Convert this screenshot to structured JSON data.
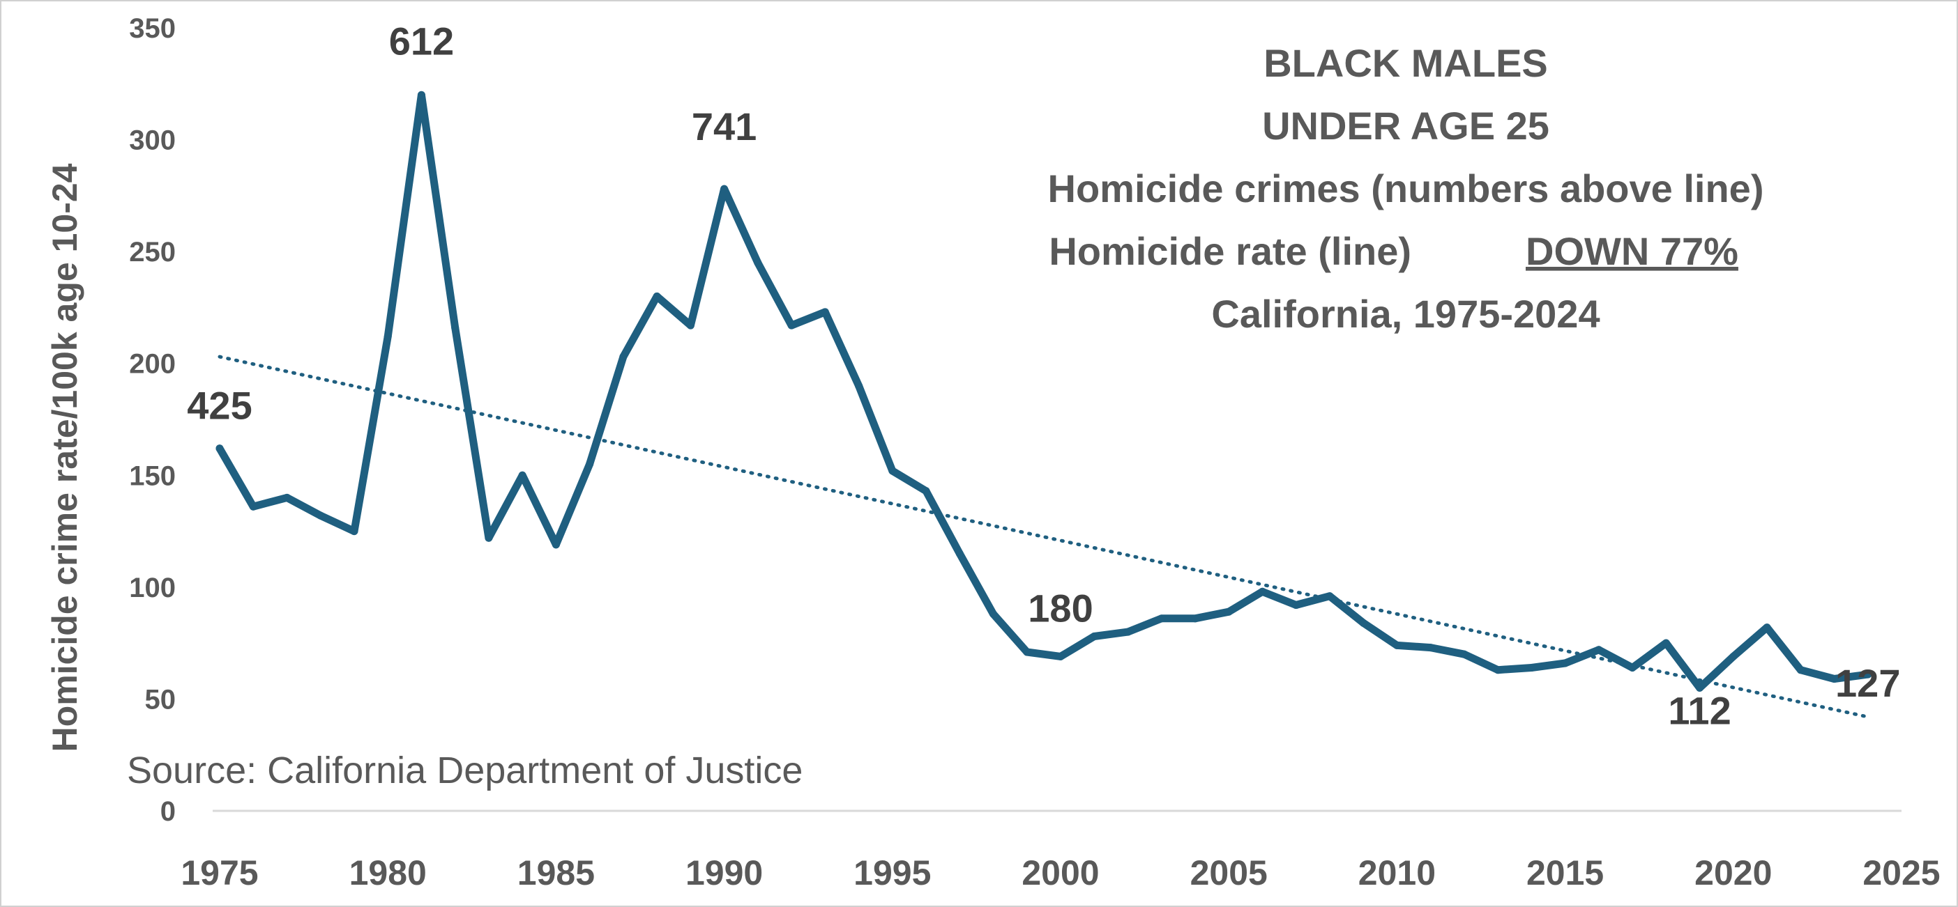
{
  "chart_data": {
    "type": "line",
    "title_lines": [
      "BLACK MALES",
      "UNDER AGE 25",
      "Homicide crimes (numbers above line)",
      "Homicide rate (line)",
      "California, 1975-2024"
    ],
    "title_emphasis": "DOWN 77%",
    "ylabel": "Homicide crime rate/100k age 10-24",
    "source": "Source: California Department of Justice",
    "ylim": [
      0,
      350
    ],
    "xlim": [
      1975,
      2025
    ],
    "y_ticks": [
      "0",
      "50",
      "100",
      "150",
      "200",
      "250",
      "300",
      "350"
    ],
    "x_ticks": [
      "1975",
      "1980",
      "1985",
      "1990",
      "1995",
      "2000",
      "2005",
      "2010",
      "2015",
      "2020",
      "2025"
    ],
    "grid": false,
    "series": [
      {
        "color": "#1f5f80",
        "x": [
          1975,
          1976,
          1977,
          1978,
          1979,
          1980,
          1981,
          1982,
          1983,
          1984,
          1985,
          1986,
          1987,
          1988,
          1989,
          1990,
          1991,
          1992,
          1993,
          1994,
          1995,
          1996,
          1997,
          1998,
          1999,
          2000,
          2001,
          2002,
          2003,
          2004,
          2005,
          2006,
          2007,
          2008,
          2009,
          2010,
          2011,
          2012,
          2013,
          2014,
          2015,
          2016,
          2017,
          2018,
          2019,
          2020,
          2021,
          2022,
          2023,
          2024
        ],
        "values": [
          162,
          136,
          140,
          132,
          125,
          212,
          320,
          216,
          122,
          150,
          119,
          155,
          203,
          230,
          217,
          278,
          245,
          217,
          223,
          190,
          152,
          143,
          115,
          88,
          71,
          69,
          78,
          80,
          86,
          86,
          89,
          98,
          92,
          96,
          84,
          74,
          73,
          70,
          63,
          64,
          66,
          72,
          64,
          75,
          55,
          69,
          82,
          63,
          59,
          61
        ]
      }
    ],
    "trendline": {
      "style": "dotted",
      "color": "#1f5f80",
      "start": {
        "x": 1975,
        "y": 203
      },
      "end": {
        "x": 2024,
        "y": 42
      }
    },
    "annotations": [
      {
        "text": "425",
        "x": 1975
      },
      {
        "text": "612",
        "x": 1981
      },
      {
        "text": "741",
        "x": 1990
      },
      {
        "text": "180",
        "x": 2000
      },
      {
        "text": "112",
        "x": 2019
      },
      {
        "text": "127",
        "x": 2024
      }
    ]
  }
}
